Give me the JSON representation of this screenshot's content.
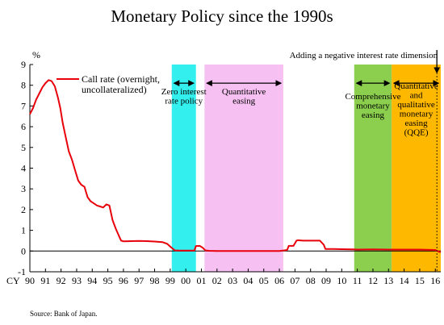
{
  "chart_data": {
    "type": "line",
    "title": "Monetary Policy since the 1990s",
    "ylabel": "%",
    "xaxis_prefix": "CY",
    "xlim": [
      1990,
      2016.35
    ],
    "ylim": [
      -1,
      9
    ],
    "y_ticks": [
      -1,
      0,
      1,
      2,
      3,
      4,
      5,
      6,
      7,
      8,
      9
    ],
    "x_ticks": [
      {
        "x": 1990,
        "label": "90"
      },
      {
        "x": 1991,
        "label": "91"
      },
      {
        "x": 1992,
        "label": "92"
      },
      {
        "x": 1993,
        "label": "93"
      },
      {
        "x": 1994,
        "label": "94"
      },
      {
        "x": 1995,
        "label": "95"
      },
      {
        "x": 1996,
        "label": "96"
      },
      {
        "x": 1997,
        "label": "97"
      },
      {
        "x": 1998,
        "label": "98"
      },
      {
        "x": 1999,
        "label": "99"
      },
      {
        "x": 2000,
        "label": "00"
      },
      {
        "x": 2001,
        "label": "01"
      },
      {
        "x": 2002,
        "label": "02"
      },
      {
        "x": 2003,
        "label": "03"
      },
      {
        "x": 2004,
        "label": "04"
      },
      {
        "x": 2005,
        "label": "05"
      },
      {
        "x": 2006,
        "label": "06"
      },
      {
        "x": 2007,
        "label": "07"
      },
      {
        "x": 2008,
        "label": "08"
      },
      {
        "x": 2009,
        "label": "09"
      },
      {
        "x": 2010,
        "label": "10"
      },
      {
        "x": 2011,
        "label": "11"
      },
      {
        "x": 2012,
        "label": "12"
      },
      {
        "x": 2013,
        "label": "13"
      },
      {
        "x": 2014,
        "label": "14"
      },
      {
        "x": 2015,
        "label": "15"
      },
      {
        "x": 2016,
        "label": "16"
      }
    ],
    "grid": false,
    "legend": "top-left",
    "series": [
      {
        "name": "Call rate (overnight, uncollateralized)",
        "color": "#e8000b",
        "x": [
          1990.0,
          1990.2,
          1990.4,
          1990.6,
          1990.8,
          1991.0,
          1991.2,
          1991.4,
          1991.6,
          1991.8,
          1991.95,
          1992.1,
          1992.3,
          1992.5,
          1992.7,
          1992.9,
          1993.1,
          1993.3,
          1993.5,
          1993.7,
          1993.9,
          1994.1,
          1994.3,
          1994.5,
          1994.7,
          1994.9,
          1995.1,
          1995.3,
          1995.5,
          1995.7,
          1995.85,
          1996.0,
          1996.5,
          1997.0,
          1997.5,
          1998.0,
          1998.5,
          1998.8,
          1998.95,
          1999.1,
          1999.3,
          1999.6,
          2000.0,
          2000.55,
          2000.65,
          2000.9,
          2001.1,
          2001.25,
          2001.5,
          2002.0,
          2003.0,
          2004.0,
          2005.0,
          2006.0,
          2006.5,
          2006.6,
          2006.9,
          2007.1,
          2007.2,
          2007.5,
          2008.0,
          2008.6,
          2008.85,
          2008.95,
          2009.5,
          2010.0,
          2010.8,
          2011.0,
          2012.0,
          2013.0,
          2013.3,
          2014.0,
          2015.0,
          2016.0,
          2016.1,
          2016.2,
          2016.35
        ],
        "values": [
          6.6,
          6.9,
          7.3,
          7.6,
          7.9,
          8.1,
          8.25,
          8.2,
          7.95,
          7.4,
          6.9,
          6.2,
          5.5,
          4.8,
          4.4,
          3.9,
          3.4,
          3.2,
          3.1,
          2.6,
          2.4,
          2.3,
          2.2,
          2.15,
          2.1,
          2.25,
          2.2,
          1.5,
          1.1,
          0.75,
          0.5,
          0.47,
          0.48,
          0.49,
          0.48,
          0.46,
          0.43,
          0.35,
          0.25,
          0.15,
          0.03,
          0.02,
          0.02,
          0.02,
          0.24,
          0.25,
          0.15,
          0.03,
          0.01,
          0.002,
          0.002,
          0.002,
          0.002,
          0.002,
          0.05,
          0.25,
          0.25,
          0.5,
          0.52,
          0.5,
          0.5,
          0.5,
          0.3,
          0.1,
          0.1,
          0.09,
          0.08,
          0.07,
          0.08,
          0.07,
          0.07,
          0.07,
          0.07,
          0.05,
          0.01,
          -0.02,
          -0.05
        ]
      }
    ],
    "zero_line": 0,
    "shaded_regions": [
      {
        "label": "Zero interest rate policy",
        "start": 1999.1,
        "end": 2000.65,
        "color": "#33f0ee",
        "arrow_y": 8.1
      },
      {
        "label": "Quantitative easing",
        "start": 2001.2,
        "end": 2006.25,
        "color": "#f7c0f2",
        "arrow_y": 8.1
      },
      {
        "label": "Comprehensive monetary easing",
        "start": 2010.8,
        "end": 2013.2,
        "color": "#8ccf4e",
        "arrow_y": 8.1
      },
      {
        "label": "Quantitative and qualitative monetary easing (QQE)",
        "start": 2013.2,
        "end": 2016.35,
        "color": "#ffb800",
        "arrow_y": 8.1
      }
    ],
    "annotations": [
      {
        "text": "Adding a negative interest rate dimension",
        "x": 2016.1
      },
      {
        "text": "Source: Bank of Japan."
      }
    ]
  }
}
